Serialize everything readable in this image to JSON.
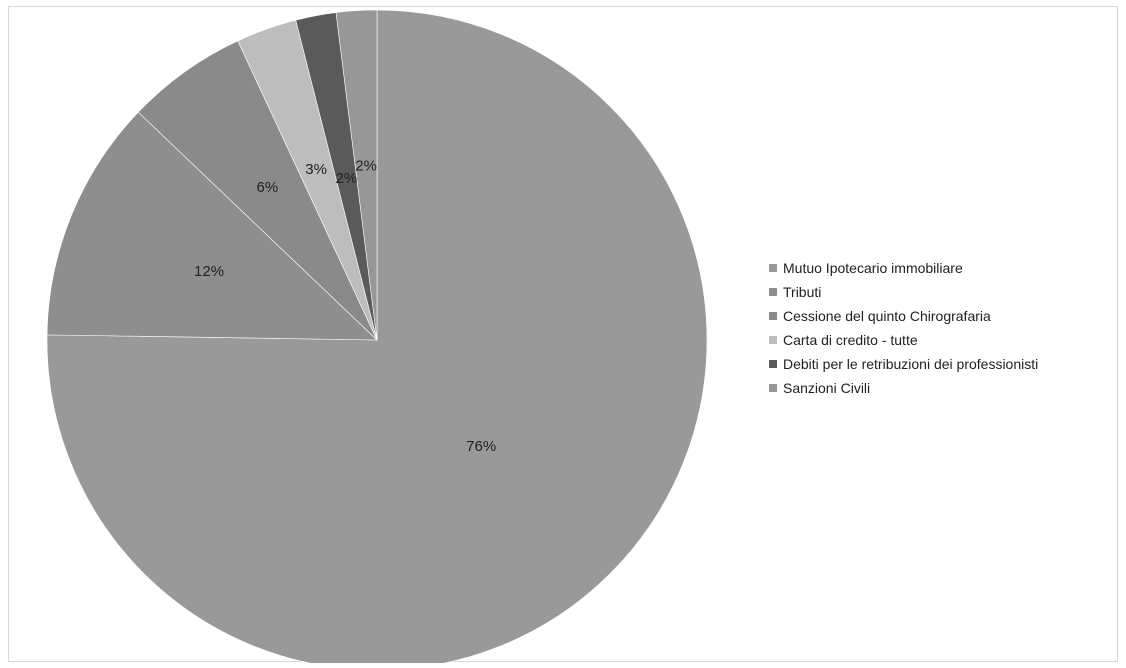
{
  "chart_data": {
    "type": "pie",
    "series": [
      {
        "name": "Mutuo Ipotecario immobiliare",
        "value": 76,
        "label": "76%",
        "color": "#999999"
      },
      {
        "name": "Tributi",
        "value": 12,
        "label": "12%",
        "color": "#8e8e8e"
      },
      {
        "name": "Cessione del quinto Chirografaria",
        "value": 6,
        "label": "6%",
        "color": "#8a8a8a"
      },
      {
        "name": "Carta di credito - tutte",
        "value": 3,
        "label": "3%",
        "color": "#bdbdbd"
      },
      {
        "name": "Debiti per le retribuzioni dei professionisti",
        "value": 2,
        "label": "2%",
        "color": "#5a5a5a"
      },
      {
        "name": "Sanzioni Civili",
        "value": 2,
        "label": "2%",
        "color": "#979797"
      }
    ],
    "legend_position": "right",
    "start_angle": "12 o'clock",
    "direction": "clockwise"
  }
}
